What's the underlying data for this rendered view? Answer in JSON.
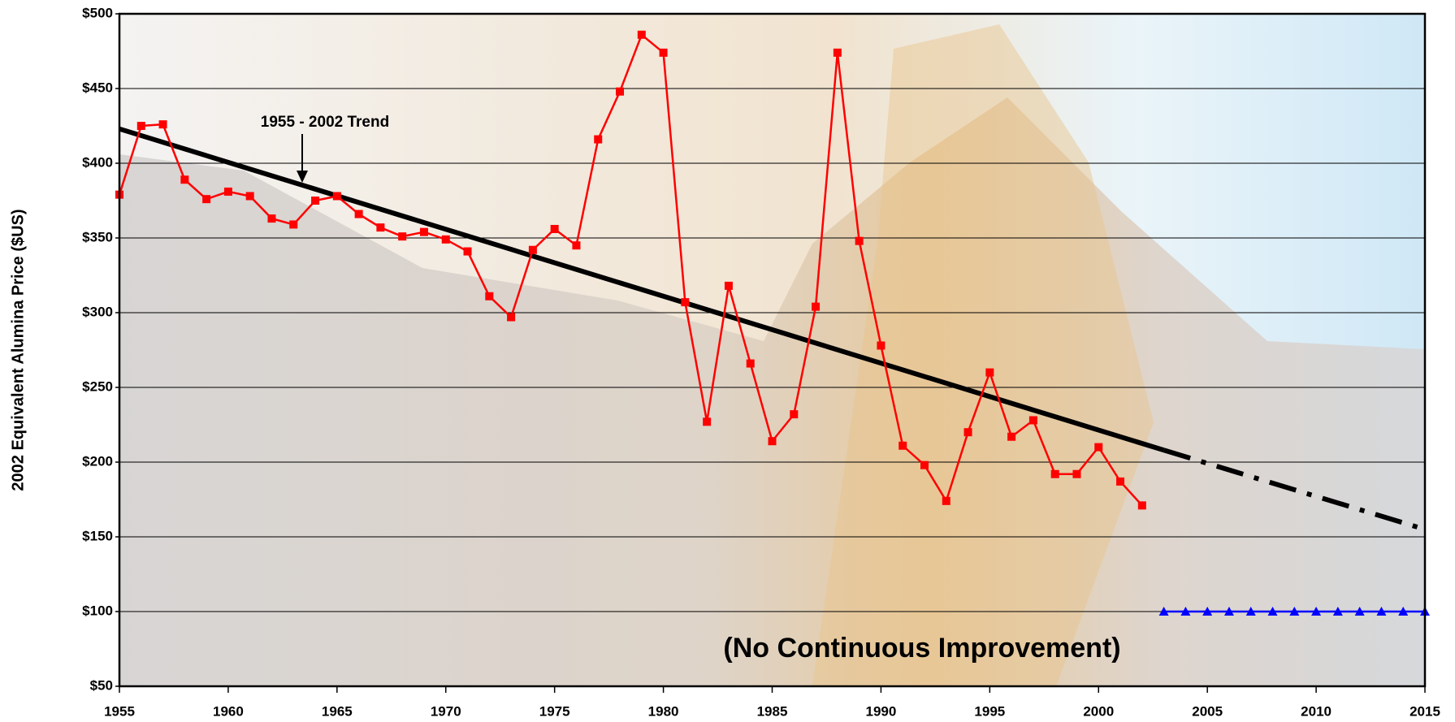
{
  "chart_data": {
    "type": "line",
    "y_label": "2002 Equivalent Alumina Price ($US)",
    "annotations": [
      "1955 - 2002 Trend",
      "(No Continuous Improvement)"
    ],
    "xlim": [
      1955,
      2015
    ],
    "xticks": [
      1955,
      1960,
      1965,
      1970,
      1975,
      1980,
      1985,
      1990,
      1995,
      2000,
      2005,
      2010,
      2015
    ],
    "ylim": [
      50,
      500
    ],
    "yticks": [
      {
        "value": 50,
        "label": "$50"
      },
      {
        "value": 100,
        "label": "$100"
      },
      {
        "value": 150,
        "label": "$150"
      },
      {
        "value": 200,
        "label": "$200"
      },
      {
        "value": 250,
        "label": "$250"
      },
      {
        "value": 300,
        "label": "$300"
      },
      {
        "value": 350,
        "label": "$350"
      },
      {
        "value": 400,
        "label": "$400"
      },
      {
        "value": 450,
        "label": "$450"
      },
      {
        "value": 500,
        "label": "$500"
      }
    ],
    "grid": true,
    "series": [
      {
        "color": "#000000",
        "marker": "none",
        "dash": "solid",
        "x": [
          1955,
          2003
        ],
        "values": [
          423,
          208
        ]
      },
      {
        "color": "#000000",
        "marker": "none",
        "dash": "dash-dot",
        "x": [
          2003,
          2015
        ],
        "values": [
          208,
          155
        ]
      },
      {
        "color": "#ff0000",
        "marker": "square",
        "dash": "solid",
        "x": [
          1955,
          1956,
          1957,
          1958,
          1959,
          1960,
          1961,
          1962,
          1963,
          1964,
          1965,
          1966,
          1967,
          1968,
          1969,
          1970,
          1971,
          1972,
          1973,
          1974,
          1975,
          1976,
          1977,
          1978,
          1979,
          1980,
          1981,
          1982,
          1983,
          1984,
          1985,
          1986,
          1987,
          1988,
          1989,
          1990,
          1991,
          1992,
          1993,
          1994,
          1995,
          1996,
          1997,
          1998,
          1999,
          2000,
          2001,
          2002
        ],
        "values": [
          379,
          425,
          426,
          389,
          376,
          381,
          378,
          363,
          359,
          375,
          378,
          366,
          357,
          351,
          354,
          349,
          341,
          311,
          297,
          342,
          356,
          345,
          416,
          448,
          486,
          474,
          307,
          227,
          318,
          266,
          214,
          232,
          304,
          474,
          348,
          278,
          211,
          198,
          174,
          220,
          260,
          217,
          228,
          192,
          192,
          210,
          187,
          171
        ]
      },
      {
        "color": "#0000ff",
        "marker": "triangle",
        "dash": "solid",
        "x": [
          2003,
          2004,
          2005,
          2006,
          2007,
          2008,
          2009,
          2010,
          2011,
          2012,
          2013,
          2014,
          2015
        ],
        "values": [
          100,
          100,
          100,
          100,
          100,
          100,
          100,
          100,
          100,
          100,
          100,
          100,
          100
        ]
      }
    ]
  }
}
